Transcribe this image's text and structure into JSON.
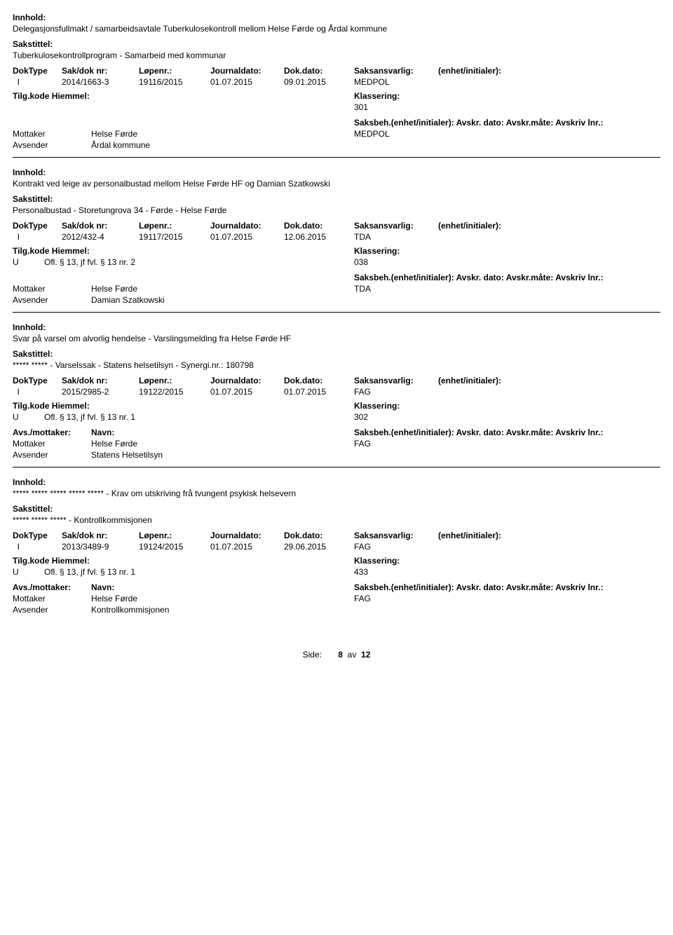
{
  "labels": {
    "innhold": "Innhold:",
    "sakstittel": "Sakstittel:",
    "doktype": "DokType",
    "sakdok": "Sak/dok nr:",
    "lopenr": "Løpenr.:",
    "journaldato": "Journaldato:",
    "dokdato": "Dok.dato:",
    "saksansvarlig": "Saksansvarlig:",
    "enhet": "(enhet/initialer):",
    "tilgkode": "Tilg.kode",
    "hiemmel": "Hiemmel:",
    "klassering": "Klassering:",
    "avsmottaker": "Avs./mottaker:",
    "navn": "Navn:",
    "saksbeh": "Saksbeh.(enhet/initialer):",
    "avskr_etc": "Avskr. dato:  Avskr.måte:  Avskriv lnr.:",
    "mottaker": "Mottaker",
    "avsender": "Avsender"
  },
  "footer": {
    "side": "Side:",
    "page": "8",
    "av": "av",
    "total": "12"
  },
  "records": [
    {
      "innhold": "Delegasjonsfullmakt / samarbeidsavtale Tuberkulosekontroll mellom Helse Førde og Årdal kommune",
      "sakstittel": "Tuberkulosekontrollprogram - Samarbeid med kommunar",
      "doktype": "I",
      "sakdok": "2014/1663-3",
      "lopenr": "19116/2015",
      "journaldato": "01.07.2015",
      "dokdato": "09.01.2015",
      "saksansvarlig": "MEDPOL",
      "tilgkode": "",
      "hiemmel": "",
      "klassering": "301",
      "show_avs_header": false,
      "mottaker_name": "Helse Førde",
      "mottaker_code": "MEDPOL",
      "avsender_name": "Årdal kommune"
    },
    {
      "innhold": "Kontrakt ved leige av personalbustad mellom Helse Førde HF og Damian Szatkowski",
      "sakstittel": "Personalbustad - Storetungrova 34 - Førde - Helse Førde",
      "doktype": "I",
      "sakdok": "2012/432-4",
      "lopenr": "19117/2015",
      "journaldato": "01.07.2015",
      "dokdato": "12.06.2015",
      "saksansvarlig": "TDA",
      "tilgkode": "U",
      "hiemmel": "Ofl. § 13, jf fvl. § 13 nr. 2",
      "klassering": "038",
      "show_avs_header": false,
      "mottaker_name": "Helse Førde",
      "mottaker_code": "TDA",
      "avsender_name": "Damian Szatkowski"
    },
    {
      "innhold": "Svar på varsel om alvorlig hendelse - Varslingsmelding fra Helse Førde HF",
      "sakstittel": "***** ***** - Varselssak - Statens helsetilsyn - Synergi.nr.: 180798",
      "doktype": "I",
      "sakdok": "2015/2985-2",
      "lopenr": "19122/2015",
      "journaldato": "01.07.2015",
      "dokdato": "01.07.2015",
      "saksansvarlig": "FAG",
      "tilgkode": "U",
      "hiemmel": "Ofl. § 13, jf fvl. § 13 nr. 1",
      "klassering": "302",
      "show_avs_header": true,
      "mottaker_name": "Helse Førde",
      "mottaker_code": "FAG",
      "avsender_name": "Statens Helsetilsyn"
    },
    {
      "innhold": "***** ***** ***** ***** ***** - Krav om utskriving frå tvungent psykisk helsevern",
      "sakstittel": "***** ***** ***** - Kontrollkommisjonen",
      "doktype": "I",
      "sakdok": "2013/3489-9",
      "lopenr": "19124/2015",
      "journaldato": "01.07.2015",
      "dokdato": "29.06.2015",
      "saksansvarlig": "FAG",
      "tilgkode": "U",
      "hiemmel": "Ofl. § 13, jf fvl. § 13 nr. 1",
      "klassering": "433",
      "show_avs_header": true,
      "mottaker_name": "Helse Førde",
      "mottaker_code": "FAG",
      "avsender_name": "Kontrollkommisjonen"
    }
  ]
}
